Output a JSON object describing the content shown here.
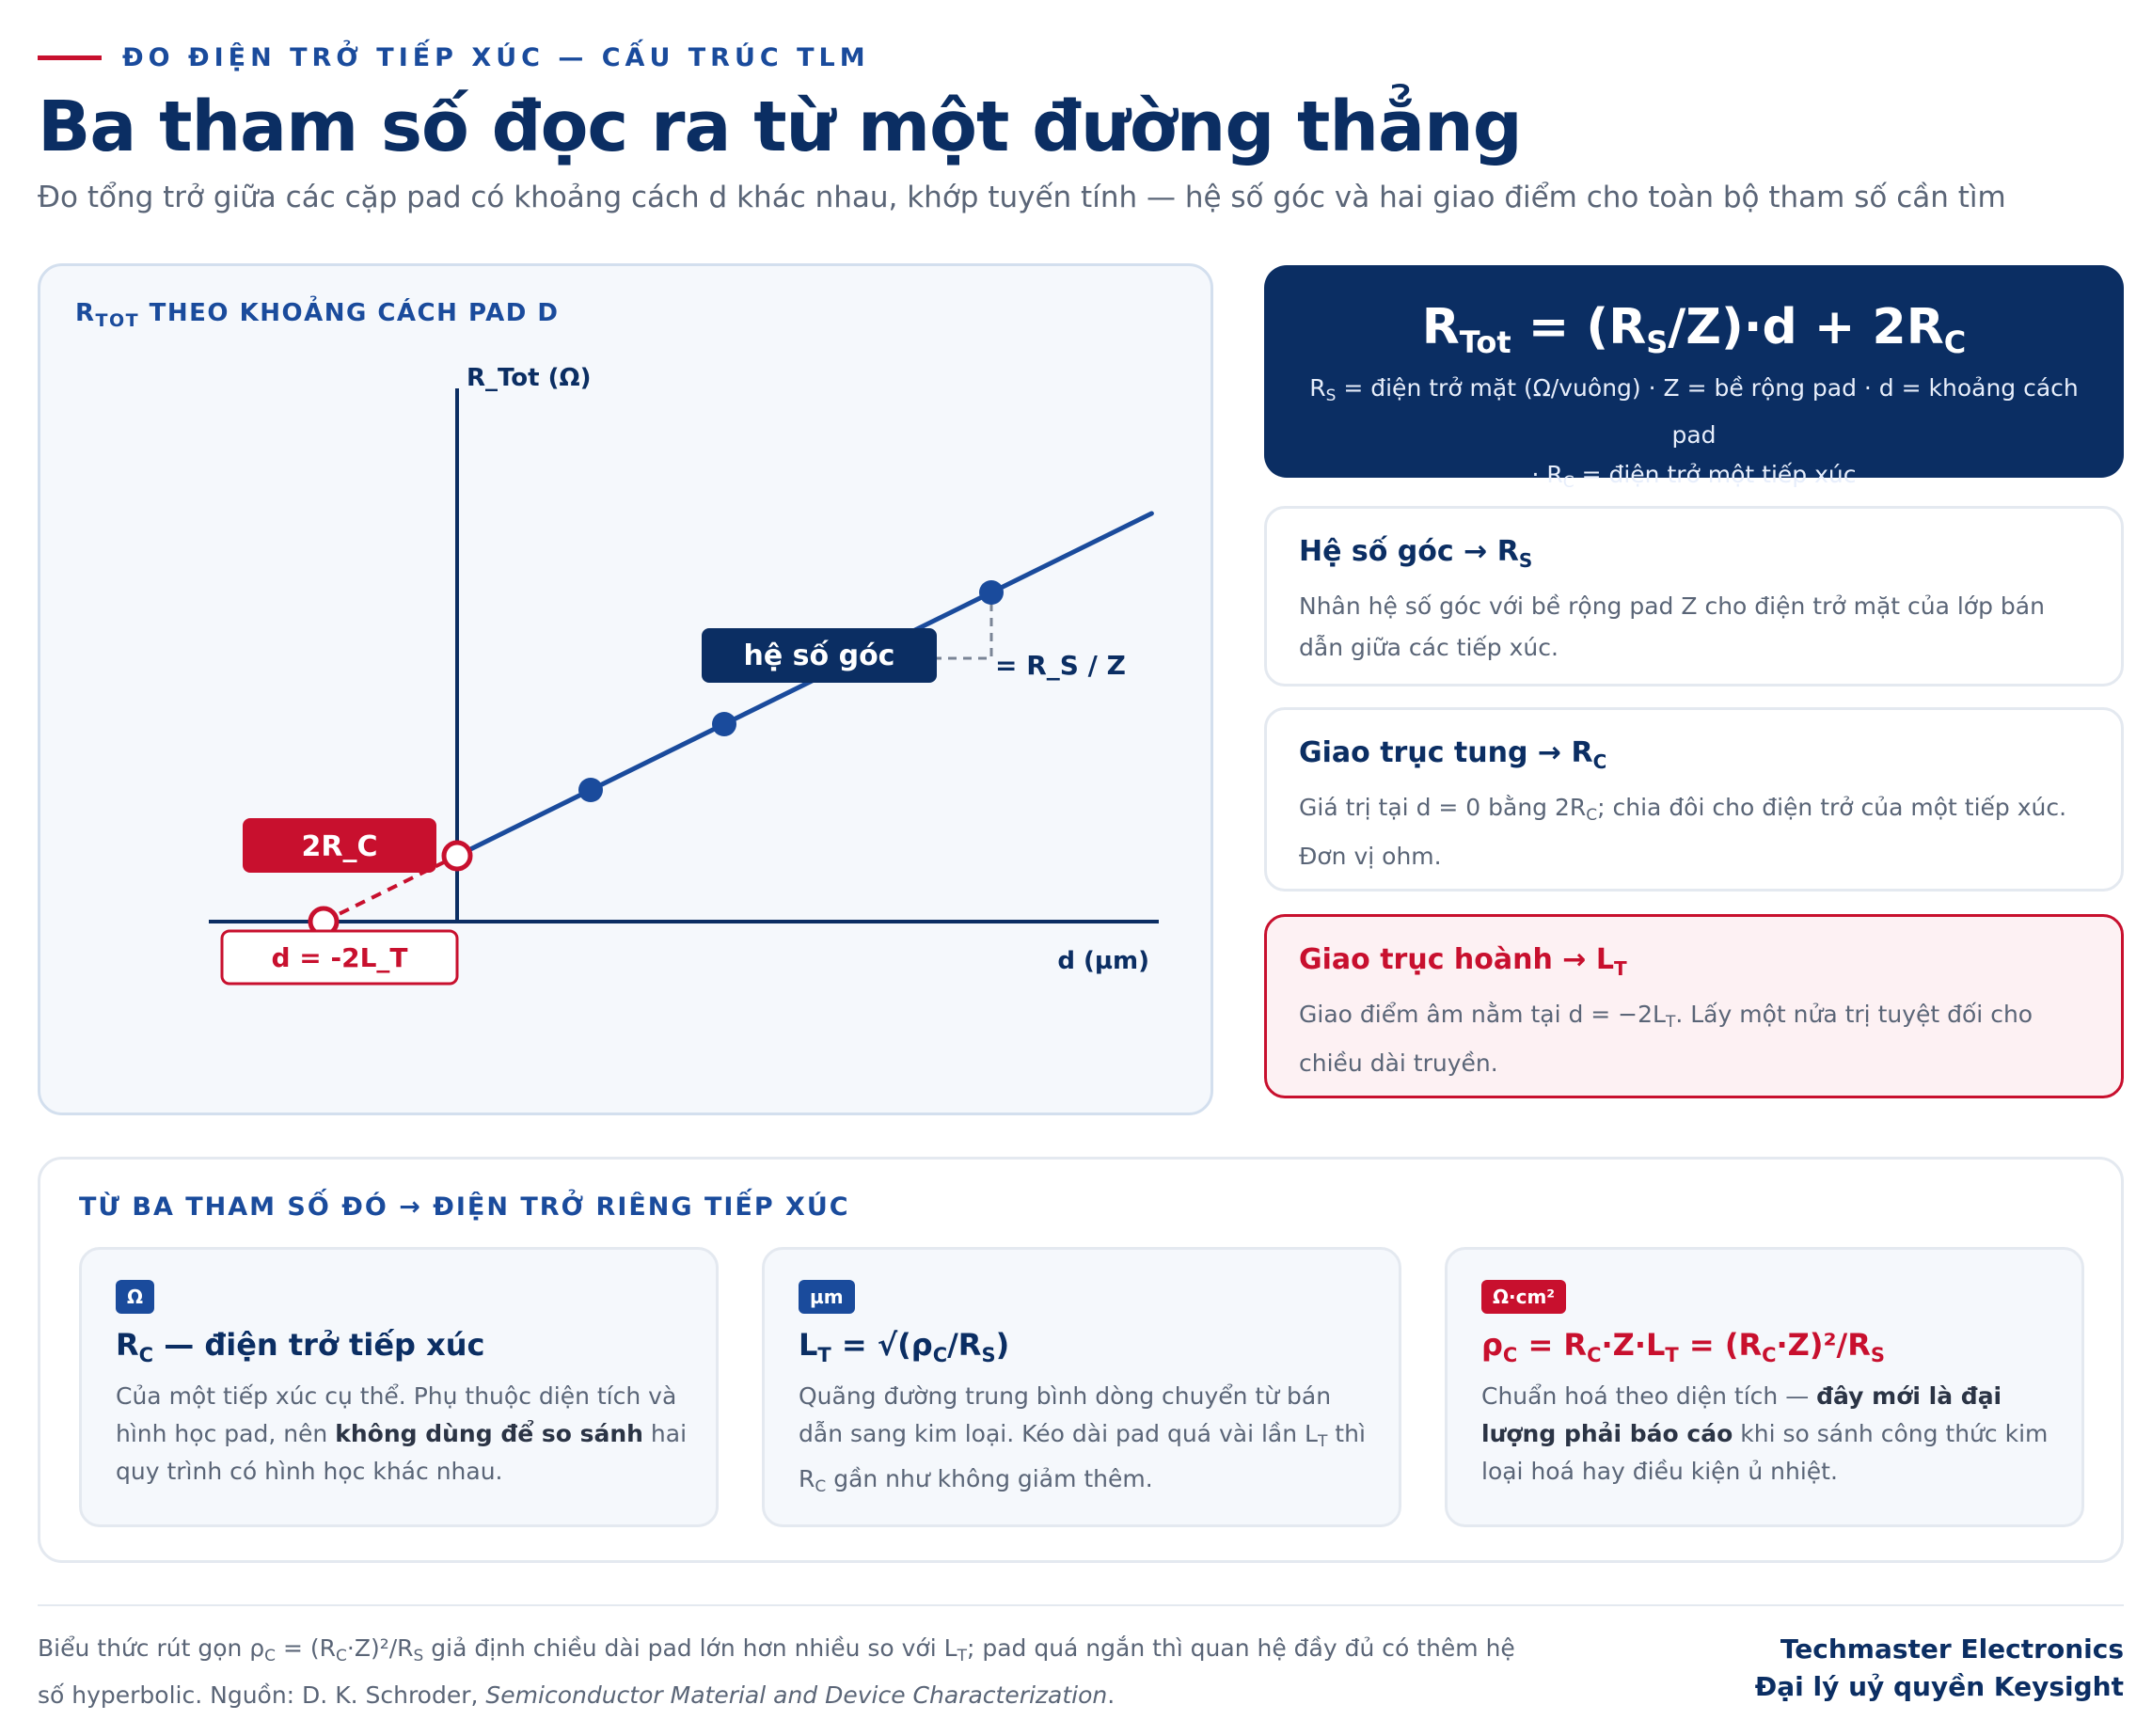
{
  "header": {
    "eyebrow": "ĐO ĐIỆN TRỞ TIẾP XÚC — CẤU TRÚC TLM",
    "title": "Ba tham số đọc ra từ một đường thẳng",
    "subtitle": "Đo tổng trở giữa các cặp pad có khoảng cách d khác nhau, khớp tuyến tính — hệ số góc và hai giao điểm cho toàn bộ tham số cần tìm"
  },
  "chart": {
    "title_main": "R",
    "title_sub": "TOT",
    "title_rest": " THEO KHOẢNG CÁCH PAD D",
    "y_axis_label": "R_Tot (Ω)",
    "x_axis_label": "d (µm)",
    "slope_label": "hệ số góc",
    "slope_value": "= R_S / Z",
    "y_intercept_label": "2R_C",
    "x_intercept_label": "d = -2L_T"
  },
  "chart_data": {
    "type": "scatter",
    "x": [
      1,
      2,
      3,
      4
    ],
    "y": [
      2,
      3,
      4,
      5
    ],
    "y_intercept": 1,
    "x_intercept": -1,
    "fit_line": true,
    "xlim": [
      -2,
      6.2
    ],
    "ylim": [
      -0.5,
      6
    ]
  },
  "formula": {
    "lhs": "R",
    "lhs_sub": "Tot",
    "eq1": " = (R",
    "rs_sub": "S",
    "eq2": "/Z)·d + 2R",
    "rc_sub": "C",
    "desc_line1_pre": "R",
    "desc_line1_sub": "S",
    "desc_line1_rest": " = điện trở mặt (Ω/vuông) · Z = bề rộng pad · d = khoảng cách pad",
    "desc_line2_pre": "· R",
    "desc_line2_sub": "C",
    "desc_line2_rest": " = điện trở một tiếp xúc"
  },
  "cards": [
    {
      "head_pre": "Hệ số góc → R",
      "head_sub": "S",
      "body": "Nhân hệ số góc với bề rộng pad Z cho điện trở mặt của lớp bán dẫn giữa các tiếp xúc."
    },
    {
      "head_pre": "Giao trục tung → R",
      "head_sub": "C",
      "body_pre": "Giá trị tại d = 0 bằng 2R",
      "body_sub": "C",
      "body_rest": "; chia đôi cho điện trở của một tiếp xúc. Đơn vị ohm."
    },
    {
      "head_pre": "Giao trục hoành → L",
      "head_sub": "T",
      "body_pre": "Giao điểm âm nằm tại d = −2L",
      "body_sub": "T",
      "body_rest": ". Lấy một nửa trị tuyệt đối cho chiều dài truyền."
    }
  ],
  "bottom": {
    "title": "TỪ BA THAM SỐ ĐÓ → ĐIỆN TRỞ RIÊNG TIẾP XÚC",
    "params": [
      {
        "unit": "Ω",
        "head_pre": "R",
        "head_sub": "C",
        "head_rest": " — điện trở tiếp xúc",
        "body_pre": "Của một tiếp xúc cụ thể. Phụ thuộc diện tích và hình học pad, nên ",
        "body_bold": "không dùng để so sánh",
        "body_rest": " hai quy trình có hình học khác nhau."
      },
      {
        "unit": "µm",
        "head_pre": "L",
        "head_sub": "T",
        "head_mid": " = √(ρ",
        "head_sub2": "C",
        "head_mid2": "/R",
        "head_sub3": "S",
        "head_end": ")",
        "body_pre": "Quãng đường trung bình dòng chuyển từ bán dẫn sang kim loại. Kéo dài pad quá vài lần L",
        "body_sub": "T",
        "body_mid": " thì R",
        "body_sub2": "C",
        "body_rest": " gần như không giảm thêm."
      },
      {
        "unit": "Ω·cm²",
        "head_pre": "ρ",
        "head_sub": "C",
        "head_mid": " = R",
        "head_sub2": "C",
        "head_mid2": "·Z·L",
        "head_sub3": "T",
        "head_mid3": " = (R",
        "head_sub4": "C",
        "head_mid4": "·Z)²/R",
        "head_sub5": "S",
        "body_pre": "Chuẩn hoá theo diện tích — ",
        "body_bold": "đây mới là đại lượng phải báo cáo",
        "body_rest": " khi so sánh công thức kim loại hoá hay điều kiện ủ nhiệt."
      }
    ]
  },
  "footer": {
    "note_pre": "Biểu thức rút gọn ρ",
    "note_sub1": "C",
    "note_mid1": " = (R",
    "note_sub2": "C",
    "note_mid2": "·Z)²/R",
    "note_sub3": "S",
    "note_mid3": " giả định chiều dài pad lớn hơn nhiều so với L",
    "note_sub4": "T",
    "note_mid4": "; pad quá ngắn thì quan hệ đầy đủ có thêm hệ số hyperbolic. Nguồn: D. K. Schroder, ",
    "note_book": "Semiconductor Material and Device Characterization",
    "note_end": ".",
    "brand_line1": "Techmaster Electronics",
    "brand_line2": "Đại lý uỷ quyền Keysight"
  },
  "colors": {
    "navy": "#0b2e63",
    "blue": "#1a4b9c",
    "red": "#c8102e",
    "muted": "#5a6577"
  }
}
